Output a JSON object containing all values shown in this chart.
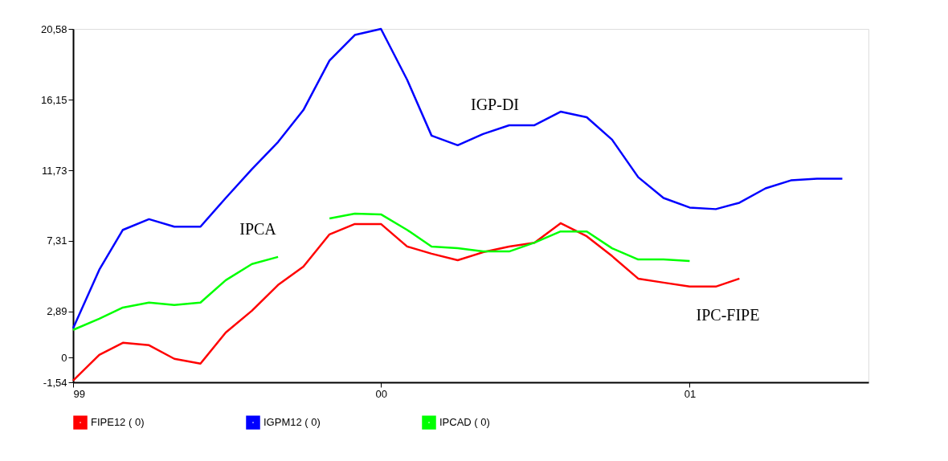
{
  "chart_data": {
    "type": "line",
    "x": [
      "1999-01",
      "1999-02",
      "1999-03",
      "1999-04",
      "1999-05",
      "1999-06",
      "1999-07",
      "1999-08",
      "1999-09",
      "1999-10",
      "1999-11",
      "1999-12",
      "2000-01",
      "2000-02",
      "2000-03",
      "2000-04",
      "2000-05",
      "2000-06",
      "2000-07",
      "2000-08",
      "2000-09",
      "2000-10",
      "2000-11",
      "2000-12",
      "2001-01",
      "2001-02",
      "2001-03",
      "2001-04",
      "2001-05",
      "2001-06",
      "2001-07"
    ],
    "series": [
      {
        "name": "FIPE12  ( 0)",
        "color": "#ff0000",
        "values": [
          -1.43,
          0.18,
          0.93,
          0.78,
          -0.07,
          -0.37,
          1.58,
          2.94,
          4.55,
          5.7,
          7.72,
          8.37,
          8.37,
          6.96,
          6.51,
          6.1,
          6.6,
          6.96,
          7.2,
          8.42,
          7.6,
          6.36,
          4.95,
          4.7,
          4.45,
          4.45,
          4.95,
          null,
          null,
          null,
          null
        ]
      },
      {
        "name": "IGPM12  ( 0)",
        "color": "#0000ff",
        "values": [
          1.84,
          5.5,
          8.0,
          8.67,
          8.2,
          8.2,
          10.0,
          11.8,
          13.5,
          15.5,
          18.6,
          20.2,
          20.58,
          17.4,
          13.9,
          13.3,
          14.0,
          14.55,
          14.55,
          15.4,
          15.05,
          13.65,
          11.3,
          10.0,
          9.4,
          9.3,
          9.7,
          10.6,
          11.1,
          11.2,
          11.2
        ]
      },
      {
        "name": "IPCAD ( 0)",
        "color": "#00ff00",
        "values": [
          1.74,
          2.44,
          3.14,
          3.45,
          3.3,
          3.45,
          4.85,
          5.86,
          6.31,
          null,
          8.72,
          9.02,
          8.97,
          8.0,
          6.96,
          6.85,
          6.65,
          6.65,
          7.2,
          7.9,
          7.9,
          6.85,
          6.15,
          6.15,
          6.05,
          null,
          null,
          null,
          null,
          null,
          null
        ]
      }
    ],
    "xlim": [
      "1999-01",
      "2001-08"
    ],
    "xticks": [
      {
        "value": "1999-01",
        "label": "99"
      },
      {
        "value": "2000-01",
        "label": "00"
      },
      {
        "value": "2001-01",
        "label": "01"
      }
    ],
    "ylim": [
      -1.54,
      20.58
    ],
    "yticks": [
      {
        "value": -1.54,
        "label": "-1,54"
      },
      {
        "value": 0,
        "label": "0"
      },
      {
        "value": 2.89,
        "label": "2,89"
      },
      {
        "value": 7.31,
        "label": "7,31"
      },
      {
        "value": 11.73,
        "label": "11,73"
      },
      {
        "value": 16.15,
        "label": "16,15"
      },
      {
        "value": 20.58,
        "label": "20,58"
      }
    ],
    "annotations": [
      "IGP-DI",
      "IPCA",
      "IPC-FIPE"
    ],
    "grid": false,
    "legend": "bottom",
    "marker": "none",
    "line_style": "solid"
  }
}
